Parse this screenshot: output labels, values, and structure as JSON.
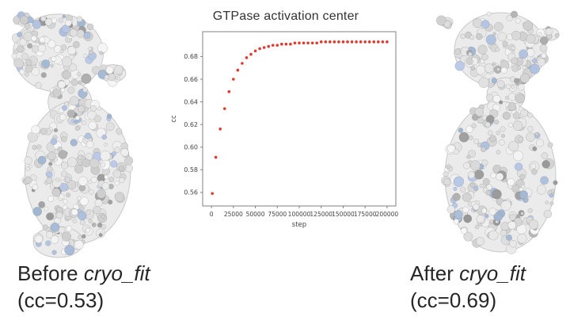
{
  "figure": {
    "title": "GTPase activation center"
  },
  "captions": {
    "before": {
      "prefix": "Before ",
      "italic": "cryo_fit",
      "cc": "(cc=0.53)"
    },
    "after": {
      "prefix": "After ",
      "italic": "cryo_fit",
      "cc": "(cc=0.69)"
    }
  },
  "chart_data": {
    "type": "scatter",
    "title": "GTPase activation center",
    "xlabel": "step",
    "ylabel": "cc",
    "xlim": [
      0,
      200000
    ],
    "ylim": [
      0.548,
      0.702
    ],
    "x_ticks": [
      0,
      25000,
      50000,
      75000,
      100000,
      125000,
      150000,
      175000,
      200000
    ],
    "y_ticks": [
      0.56,
      0.58,
      0.6,
      0.62,
      0.64,
      0.66,
      0.68
    ],
    "grid": false,
    "legend": "none",
    "marker_color": "#e0392d",
    "series": [
      {
        "name": "cc",
        "x": [
          1000,
          5000,
          10000,
          15000,
          20000,
          25000,
          30000,
          35000,
          40000,
          45000,
          50000,
          55000,
          60000,
          65000,
          70000,
          75000,
          80000,
          85000,
          90000,
          95000,
          100000,
          105000,
          110000,
          115000,
          120000,
          125000,
          130000,
          135000,
          140000,
          145000,
          150000,
          155000,
          160000,
          165000,
          170000,
          175000,
          180000,
          185000,
          190000,
          195000,
          200000
        ],
        "y": [
          0.559,
          0.591,
          0.616,
          0.634,
          0.649,
          0.66,
          0.668,
          0.674,
          0.679,
          0.682,
          0.685,
          0.687,
          0.688,
          0.689,
          0.69,
          0.69,
          0.691,
          0.691,
          0.691,
          0.692,
          0.692,
          0.692,
          0.692,
          0.692,
          0.692,
          0.693,
          0.693,
          0.693,
          0.693,
          0.693,
          0.693,
          0.693,
          0.693,
          0.693,
          0.693,
          0.693,
          0.693,
          0.693,
          0.693,
          0.693,
          0.693
        ]
      }
    ]
  },
  "colors": {
    "caption_text": "#262626",
    "axis": "#808080",
    "tick_label": "#444444",
    "structure_base": "#ebebeb",
    "structure_edge": "#c8c8c8"
  }
}
